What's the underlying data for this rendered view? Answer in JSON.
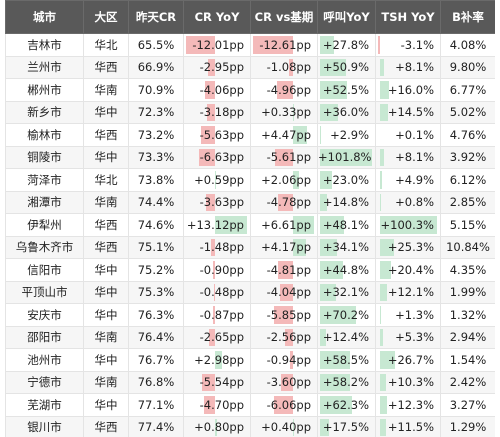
{
  "table": {
    "header": [
      "城市",
      "大区",
      "昨天CR",
      "CR YoY",
      "CR vs基期",
      "呼叫YoY",
      "TSH YoY",
      "B补率"
    ],
    "rows": [
      [
        "吉林市",
        "华北",
        "65.5%",
        "-12.01pp",
        "-12.61pp",
        "+27.8%",
        "-3.1%",
        "4.08%"
      ],
      [
        "兰州市",
        "华西",
        "66.9%",
        "-2.95pp",
        "-1.08pp",
        "+50.9%",
        "+8.1%",
        "9.80%"
      ],
      [
        "郴州市",
        "华南",
        "70.9%",
        "-4.06pp",
        "-4.96pp",
        "+52.5%",
        "+16.0%",
        "6.77%"
      ],
      [
        "新乡市",
        "华中",
        "72.3%",
        "-3.18pp",
        "+0.33pp",
        "+36.0%",
        "+14.5%",
        "5.02%"
      ],
      [
        "榆林市",
        "华西",
        "73.2%",
        "-5.63pp",
        "+4.47pp",
        "+2.9%",
        "+0.1%",
        "4.76%"
      ],
      [
        "铜陵市",
        "华中",
        "73.3%",
        "-6.63pp",
        "-5.61pp",
        "+101.8%",
        "+8.1%",
        "3.92%"
      ],
      [
        "菏泽市",
        "华北",
        "73.8%",
        "+0.59pp",
        "+2.06pp",
        "+23.0%",
        "+4.9%",
        "6.12%"
      ],
      [
        "湘潭市",
        "华南",
        "74.4%",
        "-3.63pp",
        "-4.78pp",
        "+14.8%",
        "+0.8%",
        "2.85%"
      ],
      [
        "伊犁州",
        "华西",
        "74.6%",
        "+13.12pp",
        "+6.61pp",
        "+48.1%",
        "+100.3%",
        "5.15%"
      ],
      [
        "乌鲁木齐市",
        "华西",
        "75.1%",
        "-1.48pp",
        "+4.17pp",
        "+34.1%",
        "+25.3%",
        "10.84%"
      ],
      [
        "信阳市",
        "华中",
        "75.2%",
        "-0.90pp",
        "-4.81pp",
        "+44.8%",
        "+20.4%",
        "4.35%"
      ],
      [
        "平顶山市",
        "华中",
        "75.3%",
        "-0.48pp",
        "-4.04pp",
        "+32.1%",
        "+12.1%",
        "1.99%"
      ],
      [
        "安庆市",
        "华中",
        "76.3%",
        "-0.87pp",
        "-5.85pp",
        "+70.2%",
        "+1.3%",
        "1.32%"
      ],
      [
        "邵阳市",
        "华南",
        "76.4%",
        "-2.65pp",
        "-2.56pp",
        "+12.4%",
        "+5.3%",
        "2.94%"
      ],
      [
        "池州市",
        "华中",
        "76.7%",
        "+2.98pp",
        "-0.94pp",
        "+58.5%",
        "+26.7%",
        "1.54%"
      ],
      [
        "宁德市",
        "华南",
        "76.8%",
        "-5.54pp",
        "-3.60pp",
        "+58.2%",
        "+10.3%",
        "2.42%"
      ],
      [
        "芜湖市",
        "华中",
        "77.1%",
        "-4.70pp",
        "-6.06pp",
        "+62.3%",
        "+12.3%",
        "3.27%"
      ],
      [
        "银川市",
        "华西",
        "77.4%",
        "+0.80pp",
        "+0.40pp",
        "+17.5%",
        "+11.5%",
        "1.29%"
      ]
    ]
  }
}
